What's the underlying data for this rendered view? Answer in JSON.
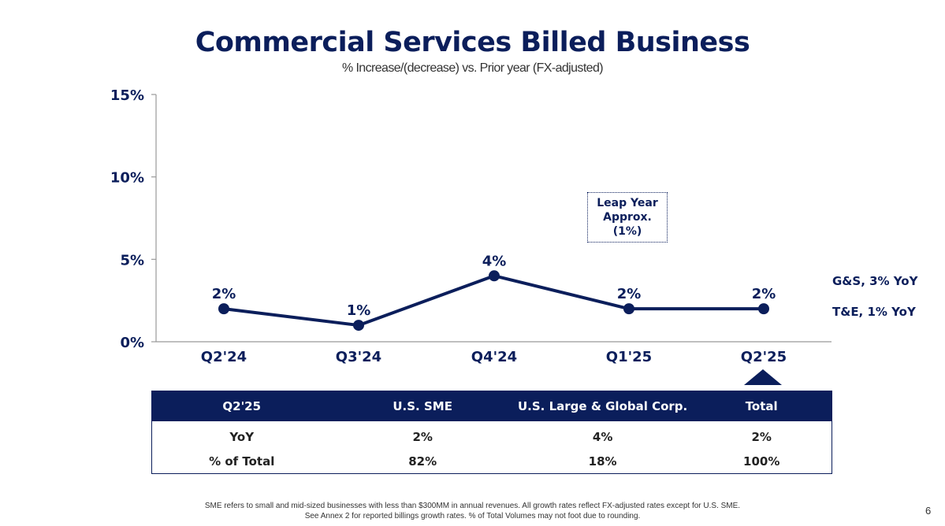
{
  "title": "Commercial Services Billed Business",
  "subtitle": "% Increase/(decrease) vs. Prior year (FX-adjusted)",
  "annotation": {
    "line1": "Leap Year",
    "line2": "Approx.",
    "line3": "(1%)"
  },
  "side_labels": {
    "gs": "G&S, 3% YoY",
    "te": "T&E, 1% YoY"
  },
  "chart_data": {
    "type": "line",
    "categories": [
      "Q2'24",
      "Q3'24",
      "Q4'24",
      "Q1'25",
      "Q2'25"
    ],
    "series": [
      {
        "values": [
          2,
          1,
          4,
          2,
          2
        ]
      }
    ],
    "data_labels": [
      "2%",
      "1%",
      "4%",
      "2%",
      "2%"
    ],
    "yticks": [
      0,
      5,
      10,
      15
    ],
    "ytick_labels": [
      "0%",
      "5%",
      "10%",
      "15%"
    ],
    "ylim": [
      0,
      15
    ],
    "grid": false,
    "line_color": "#0b1e5b"
  },
  "table": {
    "headers": [
      "Q2'25",
      "U.S. SME",
      "U.S. Large & Global Corp.",
      "Total"
    ],
    "rows": [
      [
        "YoY",
        "2%",
        "4%",
        "2%"
      ],
      [
        "% of Total",
        "82%",
        "18%",
        "100%"
      ]
    ]
  },
  "footnote": {
    "line1": "SME refers to small and mid-sized businesses with less than $300MM in annual revenues. All growth rates reflect FX-adjusted rates except for U.S. SME.",
    "line2": "See Annex 2 for reported billings growth rates. % of Total Volumes may not foot due to rounding."
  },
  "page_number": "6",
  "colors": {
    "navy": "#0b1e5b",
    "header_bg": "#0b1e5b"
  }
}
